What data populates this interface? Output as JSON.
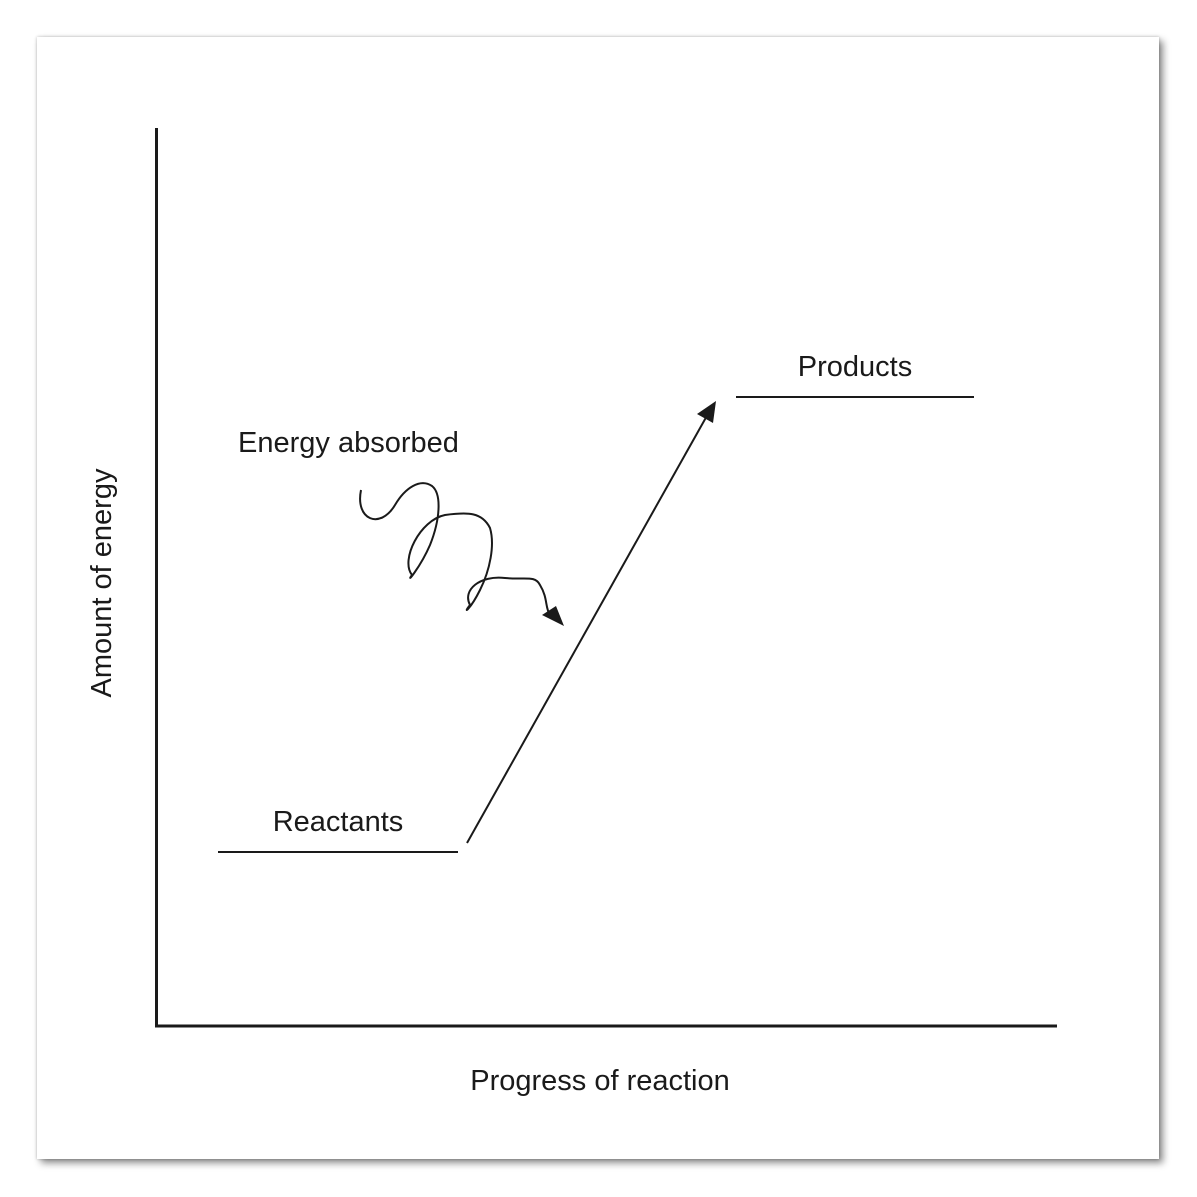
{
  "diagram": {
    "y_axis_label": "Amount of energy",
    "x_axis_label": "Progress of reaction",
    "reactants_label": "Reactants",
    "products_label": "Products",
    "energy_label": "Energy absorbed"
  }
}
